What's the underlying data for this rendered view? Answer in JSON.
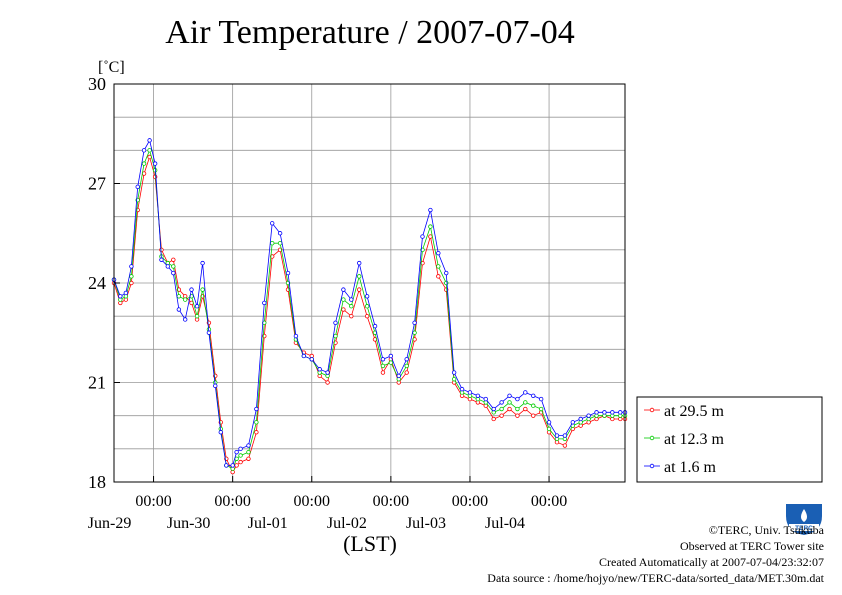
{
  "page": {
    "title": "Air Temperature / 2007-07-04",
    "footer": {
      "copyright": "©TERC, Univ. Tsukuba",
      "observed": "Observed at TERC Tower site",
      "created": "Created Automatically at 2007-07-04/23:32:07",
      "source": "Data source : /home/hojyo/new/TERC-data/sorted_data/MET.30m.dat"
    },
    "logo_text": "TERC"
  },
  "chart_data": {
    "type": "line",
    "title": "Air Temperature / 2007-07-04",
    "ylabel": "[˚C]",
    "xlabel": "(LST)",
    "ylim": [
      18,
      30
    ],
    "yticks": [
      "18",
      "21",
      "24",
      "27",
      "30"
    ],
    "xlim": [
      -1.5,
      4.96
    ],
    "x_unit": "days relative to 2007-06-30 00:00 LST",
    "xticks": [
      {
        "x": -1,
        "time": "00:00",
        "date": "Jun-29"
      },
      {
        "x": 0,
        "time": "00:00",
        "date": "Jun-30"
      },
      {
        "x": 1,
        "time": "00:00",
        "date": "Jul-01"
      },
      {
        "x": 2,
        "time": "00:00",
        "date": "Jul-02"
      },
      {
        "x": 3,
        "time": "00:00",
        "date": "Jul-03"
      },
      {
        "x": 4,
        "time": "00:00",
        "date": "Jul-04"
      }
    ],
    "grid": true,
    "legend_position": "right",
    "series": [
      {
        "name": "at 29.5 m",
        "color": "#ff0000",
        "marker": "circle",
        "x": [
          -1.5,
          -1.42,
          -1.35,
          -1.28,
          -1.2,
          -1.12,
          -1.05,
          -0.98,
          -0.9,
          -0.82,
          -0.75,
          -0.68,
          -0.6,
          -0.52,
          -0.45,
          -0.38,
          -0.3,
          -0.22,
          -0.15,
          -0.08,
          0.0,
          0.05,
          0.1,
          0.2,
          0.3,
          0.4,
          0.5,
          0.6,
          0.7,
          0.8,
          0.9,
          1.0,
          1.1,
          1.2,
          1.3,
          1.4,
          1.5,
          1.6,
          1.7,
          1.8,
          1.9,
          2.0,
          2.1,
          2.2,
          2.3,
          2.4,
          2.5,
          2.6,
          2.7,
          2.8,
          2.9,
          3.0,
          3.1,
          3.2,
          3.3,
          3.4,
          3.5,
          3.6,
          3.7,
          3.8,
          3.9,
          4.0,
          4.1,
          4.2,
          4.3,
          4.4,
          4.5,
          4.6,
          4.7,
          4.8,
          4.9,
          4.96
        ],
        "y": [
          24.0,
          23.4,
          23.5,
          24.0,
          26.2,
          27.3,
          27.8,
          27.2,
          25.0,
          24.6,
          24.7,
          23.8,
          23.6,
          23.4,
          22.9,
          23.6,
          22.8,
          21.2,
          19.8,
          18.7,
          18.3,
          18.5,
          18.6,
          18.7,
          19.5,
          22.4,
          24.8,
          25.0,
          23.8,
          22.2,
          21.9,
          21.8,
          21.2,
          21.0,
          22.2,
          23.2,
          23.0,
          23.8,
          23.0,
          22.3,
          21.3,
          21.7,
          21.0,
          21.3,
          22.3,
          24.6,
          25.4,
          24.2,
          23.8,
          21.0,
          20.6,
          20.5,
          20.4,
          20.3,
          19.9,
          20.0,
          20.2,
          20.0,
          20.2,
          20.0,
          20.1,
          19.5,
          19.2,
          19.1,
          19.6,
          19.7,
          19.8,
          19.9,
          20.0,
          19.9,
          19.9,
          19.9
        ]
      },
      {
        "name": "at 12.3 m",
        "color": "#00cc00",
        "marker": "circle",
        "x": [
          -1.5,
          -1.42,
          -1.35,
          -1.28,
          -1.2,
          -1.12,
          -1.05,
          -0.98,
          -0.9,
          -0.82,
          -0.75,
          -0.68,
          -0.6,
          -0.52,
          -0.45,
          -0.38,
          -0.3,
          -0.22,
          -0.15,
          -0.08,
          0.0,
          0.05,
          0.1,
          0.2,
          0.3,
          0.4,
          0.5,
          0.6,
          0.7,
          0.8,
          0.9,
          1.0,
          1.1,
          1.2,
          1.3,
          1.4,
          1.5,
          1.6,
          1.7,
          1.8,
          1.9,
          2.0,
          2.1,
          2.2,
          2.3,
          2.4,
          2.5,
          2.6,
          2.7,
          2.8,
          2.9,
          3.0,
          3.1,
          3.2,
          3.3,
          3.4,
          3.5,
          3.6,
          3.7,
          3.8,
          3.9,
          4.0,
          4.1,
          4.2,
          4.3,
          4.4,
          4.5,
          4.6,
          4.7,
          4.8,
          4.9,
          4.96
        ],
        "y": [
          24.1,
          23.5,
          23.6,
          24.2,
          26.5,
          27.6,
          28.0,
          27.4,
          24.8,
          24.6,
          24.5,
          23.6,
          23.5,
          23.6,
          23.0,
          23.8,
          22.6,
          21.0,
          19.6,
          18.5,
          18.4,
          18.7,
          18.8,
          18.9,
          19.8,
          22.8,
          25.2,
          25.2,
          24.0,
          22.3,
          21.8,
          21.7,
          21.3,
          21.2,
          22.4,
          23.5,
          23.3,
          24.2,
          23.3,
          22.5,
          21.5,
          21.6,
          21.1,
          21.5,
          22.5,
          25.0,
          25.7,
          24.5,
          24.0,
          21.1,
          20.7,
          20.6,
          20.5,
          20.4,
          20.1,
          20.2,
          20.4,
          20.2,
          20.4,
          20.3,
          20.2,
          19.6,
          19.3,
          19.3,
          19.7,
          19.8,
          19.9,
          20.0,
          20.0,
          20.0,
          20.0,
          20.0
        ]
      },
      {
        "name": "at 1.6 m",
        "color": "#0000ff",
        "marker": "circle",
        "x": [
          -1.5,
          -1.42,
          -1.35,
          -1.28,
          -1.2,
          -1.12,
          -1.05,
          -0.98,
          -0.9,
          -0.82,
          -0.75,
          -0.68,
          -0.6,
          -0.52,
          -0.45,
          -0.38,
          -0.3,
          -0.22,
          -0.15,
          -0.08,
          0.0,
          0.05,
          0.1,
          0.2,
          0.3,
          0.4,
          0.5,
          0.6,
          0.7,
          0.8,
          0.9,
          1.0,
          1.1,
          1.2,
          1.3,
          1.4,
          1.5,
          1.6,
          1.7,
          1.8,
          1.9,
          2.0,
          2.1,
          2.2,
          2.3,
          2.4,
          2.5,
          2.6,
          2.7,
          2.8,
          2.9,
          3.0,
          3.1,
          3.2,
          3.3,
          3.4,
          3.5,
          3.6,
          3.7,
          3.8,
          3.9,
          4.0,
          4.1,
          4.2,
          4.3,
          4.4,
          4.5,
          4.6,
          4.7,
          4.8,
          4.9,
          4.96
        ],
        "y": [
          24.1,
          23.6,
          23.7,
          24.5,
          26.9,
          28.0,
          28.3,
          27.6,
          24.7,
          24.5,
          24.3,
          23.2,
          22.9,
          23.8,
          23.3,
          24.6,
          22.5,
          20.9,
          19.5,
          18.5,
          18.5,
          18.9,
          19.0,
          19.1,
          20.2,
          23.4,
          25.8,
          25.5,
          24.3,
          22.4,
          21.8,
          21.7,
          21.4,
          21.3,
          22.8,
          23.8,
          23.5,
          24.6,
          23.6,
          22.7,
          21.7,
          21.8,
          21.2,
          21.7,
          22.8,
          25.4,
          26.2,
          24.9,
          24.3,
          21.3,
          20.8,
          20.7,
          20.6,
          20.5,
          20.2,
          20.4,
          20.6,
          20.5,
          20.7,
          20.6,
          20.5,
          19.8,
          19.4,
          19.4,
          19.8,
          19.9,
          20.0,
          20.1,
          20.1,
          20.1,
          20.1,
          20.1
        ]
      }
    ]
  }
}
